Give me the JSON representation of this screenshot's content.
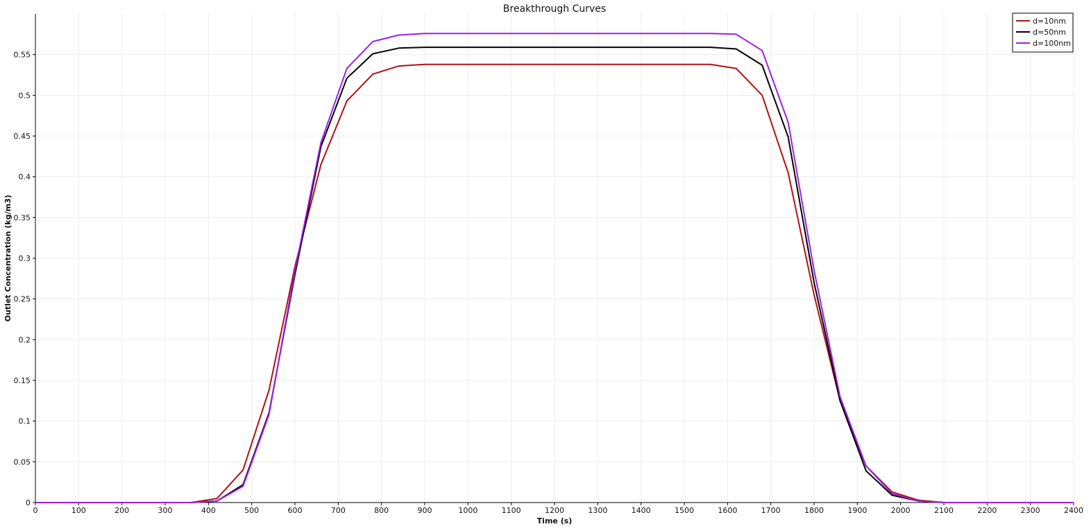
{
  "chart_data": {
    "type": "line",
    "title": "Breakthrough Curves",
    "xlabel": "Time (s)",
    "ylabel": "Outlet Concentration (kg/m3)",
    "xlim": [
      0,
      2400
    ],
    "ylim": [
      0,
      0.6
    ],
    "x_ticks": [
      0,
      100,
      200,
      300,
      400,
      500,
      600,
      700,
      800,
      900,
      1000,
      1100,
      1200,
      1300,
      1400,
      1500,
      1600,
      1700,
      1800,
      1900,
      2000,
      2100,
      2200,
      2300,
      2400
    ],
    "x_tick_labels": [
      "0",
      "100",
      "200",
      "300",
      "400",
      "500",
      "600",
      "700",
      "800",
      "900",
      "1000",
      "1100",
      "1200",
      "1300",
      "1400",
      "1500",
      "1600",
      "1700",
      "1800",
      "1900",
      "2000",
      "2100",
      "2200",
      "2300",
      "2400"
    ],
    "y_ticks": [
      0,
      0.05,
      0.1,
      0.15,
      0.2,
      0.25,
      0.3,
      0.35,
      0.4,
      0.45,
      0.5,
      0.55
    ],
    "y_tick_labels": [
      "0",
      "0.05",
      "0.1",
      "0.15",
      "0.2",
      "0.25",
      "0.3",
      "0.35",
      "0.4",
      "0.45",
      "0.5",
      "0.55"
    ],
    "grid": true,
    "legend_position": "top-right",
    "series": [
      {
        "name": "d=10nm",
        "color": "#b01010",
        "x": [
          0,
          360,
          420,
          480,
          540,
          600,
          660,
          720,
          780,
          840,
          900,
          960,
          1560,
          1620,
          1680,
          1740,
          1800,
          1860,
          1920,
          1980,
          2040,
          2100,
          2400
        ],
        "y": [
          0,
          0,
          0.005,
          0.04,
          0.138,
          0.29,
          0.415,
          0.493,
          0.526,
          0.536,
          0.538,
          0.538,
          0.538,
          0.533,
          0.5,
          0.405,
          0.255,
          0.125,
          0.045,
          0.013,
          0.003,
          0,
          0
        ]
      },
      {
        "name": "d=50nm",
        "color": "#000000",
        "x": [
          0,
          360,
          420,
          480,
          540,
          600,
          660,
          720,
          780,
          840,
          900,
          960,
          1560,
          1620,
          1680,
          1740,
          1800,
          1860,
          1920,
          1980,
          2040,
          2100,
          2400
        ],
        "y": [
          0,
          0,
          0.002,
          0.022,
          0.11,
          0.28,
          0.437,
          0.521,
          0.551,
          0.558,
          0.559,
          0.559,
          0.559,
          0.557,
          0.537,
          0.449,
          0.27,
          0.125,
          0.039,
          0.009,
          0.002,
          0,
          0
        ]
      },
      {
        "name": "d=100nm",
        "color": "#9b1fe8",
        "x": [
          0,
          360,
          420,
          480,
          540,
          600,
          660,
          720,
          780,
          840,
          900,
          960,
          1560,
          1620,
          1680,
          1740,
          1800,
          1860,
          1920,
          1980,
          2040,
          2100,
          2400
        ],
        "y": [
          0,
          0,
          0.002,
          0.02,
          0.108,
          0.285,
          0.442,
          0.533,
          0.566,
          0.574,
          0.576,
          0.576,
          0.576,
          0.575,
          0.555,
          0.467,
          0.285,
          0.13,
          0.045,
          0.011,
          0.002,
          0,
          0
        ]
      }
    ]
  }
}
